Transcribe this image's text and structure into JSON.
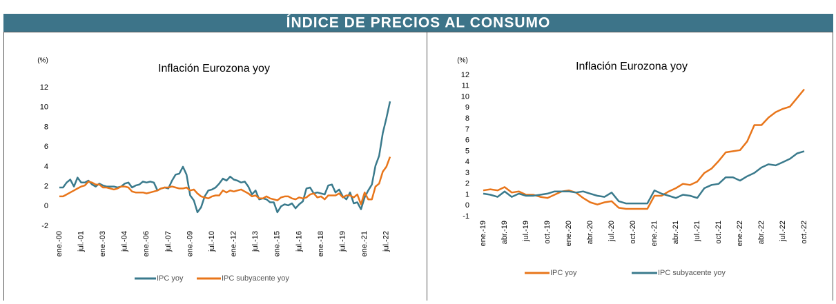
{
  "header": {
    "title": "ÍNDICE DE PRECIOS AL CONSUMO"
  },
  "chart_data": [
    {
      "type": "line",
      "title": "Inflación Eurozona yoy",
      "y_label": "(%)",
      "categories": [
        "ene.-00",
        null,
        null,
        null,
        null,
        null,
        "jul.-01",
        null,
        null,
        null,
        null,
        null,
        "ene.-03",
        null,
        null,
        null,
        null,
        null,
        "jul.-04",
        null,
        null,
        null,
        null,
        null,
        "ene.-06",
        null,
        null,
        null,
        null,
        null,
        "jul.-07",
        null,
        null,
        null,
        null,
        null,
        "ene.-09",
        null,
        null,
        null,
        null,
        null,
        "jul.-10",
        null,
        null,
        null,
        null,
        null,
        "ene.-12",
        null,
        null,
        null,
        null,
        null,
        "jul.-13",
        null,
        null,
        null,
        null,
        null,
        "ene.-15",
        null,
        null,
        null,
        null,
        null,
        "jul.-16",
        null,
        null,
        null,
        null,
        null,
        "ene.-18",
        null,
        null,
        null,
        null,
        null,
        "jul.-19",
        null,
        null,
        null,
        null,
        null,
        "ene.-21",
        null,
        null,
        null,
        null,
        null,
        "jul.-22",
        null
      ],
      "series": [
        {
          "name": "IPC yoy",
          "color": "#3a7a8c",
          "values": [
            1.9,
            1.9,
            2.4,
            2.7,
            2.0,
            2.9,
            2.4,
            2.4,
            2.6,
            2.2,
            2.0,
            2.3,
            2.1,
            2.0,
            2.0,
            2.0,
            1.9,
            2.0,
            2.3,
            2.4,
            1.9,
            2.1,
            2.2,
            2.5,
            2.4,
            2.5,
            2.4,
            1.6,
            1.8,
            1.9,
            1.8,
            2.6,
            3.2,
            3.3,
            4.0,
            3.2,
            1.1,
            0.6,
            -0.6,
            -0.1,
            1.0,
            1.6,
            1.7,
            1.9,
            2.3,
            2.8,
            2.6,
            3.0,
            2.7,
            2.6,
            2.4,
            2.5,
            2.0,
            1.2,
            1.6,
            0.7,
            0.8,
            0.7,
            0.4,
            0.4,
            -0.6,
            0.0,
            0.2,
            0.1,
            0.3,
            -0.2,
            0.2,
            0.5,
            1.8,
            1.9,
            1.3,
            1.4,
            1.3,
            1.2,
            2.1,
            2.2,
            1.4,
            1.7,
            1.0,
            0.7,
            1.4,
            0.3,
            0.4,
            -0.3,
            0.9,
            1.6,
            2.2,
            4.1,
            5.1,
            7.4,
            8.9,
            10.6
          ]
        },
        {
          "name": "IPC subyacente yoy",
          "color": "#e8751a",
          "values": [
            1.0,
            1.0,
            1.2,
            1.4,
            1.6,
            1.8,
            2.0,
            2.1,
            2.5,
            2.4,
            2.2,
            2.2,
            1.9,
            1.9,
            1.8,
            1.7,
            1.8,
            2.0,
            2.0,
            1.9,
            1.5,
            1.4,
            1.4,
            1.4,
            1.3,
            1.4,
            1.5,
            1.6,
            1.8,
            1.9,
            1.9,
            2.0,
            1.9,
            1.8,
            1.8,
            1.9,
            1.6,
            1.7,
            1.3,
            1.0,
            0.9,
            0.8,
            1.0,
            1.1,
            1.1,
            1.6,
            1.4,
            1.6,
            1.5,
            1.6,
            1.7,
            1.5,
            1.3,
            1.0,
            1.1,
            0.8,
            0.8,
            1.0,
            0.8,
            0.7,
            0.6,
            0.9,
            1.0,
            1.0,
            0.8,
            0.7,
            0.9,
            0.8,
            0.9,
            1.2,
            1.3,
            0.9,
            1.0,
            0.7,
            1.1,
            1.1,
            1.1,
            1.3,
            0.9,
            1.1,
            1.1,
            0.9,
            1.2,
            0.2,
            1.4,
            0.7,
            0.7,
            2.0,
            2.3,
            3.5,
            4.0,
            5.0
          ]
        }
      ],
      "ylim": [
        -2,
        12
      ],
      "yticks": [
        -2,
        0,
        2,
        4,
        6,
        8,
        10,
        12
      ],
      "grid": false,
      "legend": "bottom"
    },
    {
      "type": "line",
      "title": "Inflación Eurozona yoy",
      "y_label": "(%)",
      "categories": [
        "ene.-19",
        null,
        null,
        "abr.-19",
        null,
        null,
        "jul.-19",
        null,
        null,
        "oct.-19",
        null,
        null,
        "ene.-20",
        null,
        null,
        "abr.-20",
        null,
        null,
        "jul.-20",
        null,
        null,
        "oct.-20",
        null,
        null,
        "ene.-21",
        null,
        null,
        "abr.-21",
        null,
        null,
        "jul.-21",
        null,
        null,
        "oct.-21",
        null,
        null,
        "ene.-22",
        null,
        null,
        "abr.-22",
        null,
        null,
        "jul.-22",
        null,
        null,
        "oct.-22"
      ],
      "series": [
        {
          "name": "IPC yoy",
          "color": "#e8751a",
          "values": [
            1.4,
            1.5,
            1.4,
            1.7,
            1.2,
            1.3,
            1.0,
            1.0,
            0.8,
            0.7,
            1.0,
            1.3,
            1.4,
            1.2,
            0.7,
            0.3,
            0.1,
            0.3,
            0.4,
            -0.2,
            -0.3,
            -0.3,
            -0.3,
            -0.3,
            0.9,
            0.9,
            1.3,
            1.6,
            2.0,
            1.9,
            2.2,
            3.0,
            3.4,
            4.1,
            4.9,
            5.0,
            5.1,
            5.9,
            7.4,
            7.4,
            8.1,
            8.6,
            8.9,
            9.1,
            9.9,
            10.7
          ]
        },
        {
          "name": "IPC subyacente yoy",
          "color": "#3a7a8c",
          "values": [
            1.1,
            1.0,
            0.8,
            1.3,
            0.8,
            1.1,
            0.9,
            0.9,
            1.0,
            1.1,
            1.3,
            1.3,
            1.3,
            1.2,
            1.3,
            1.1,
            0.9,
            0.8,
            1.2,
            0.4,
            0.2,
            0.2,
            0.2,
            0.2,
            1.4,
            1.1,
            0.9,
            0.7,
            1.0,
            0.9,
            0.7,
            1.6,
            1.9,
            2.0,
            2.6,
            2.6,
            2.3,
            2.7,
            3.0,
            3.5,
            3.8,
            3.7,
            4.0,
            4.3,
            4.8,
            5.0
          ]
        }
      ],
      "ylim": [
        -1,
        12
      ],
      "yticks": [
        -1,
        0,
        1,
        2,
        3,
        4,
        5,
        6,
        7,
        8,
        9,
        10,
        11,
        12
      ],
      "grid": false,
      "legend": "bottom"
    }
  ]
}
